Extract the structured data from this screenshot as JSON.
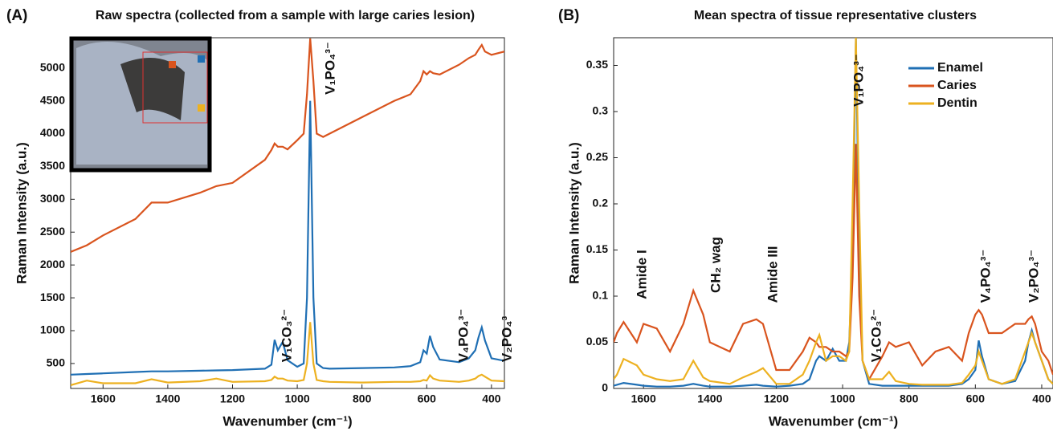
{
  "chart_data": [
    {
      "type": "line",
      "panel_label": "(A)",
      "title": "Raw spectra (collected from a sample with large caries lesion)",
      "x_label": "Wavenumber (cm⁻¹)",
      "y_label": "Raman Intensity (a.u.)",
      "xlim": [
        1700,
        360
      ],
      "ylim": [
        120,
        5460
      ],
      "xticks": [
        1600,
        1400,
        1200,
        1000,
        800,
        600,
        400
      ],
      "yticks": [
        500,
        1000,
        1500,
        2000,
        2500,
        3000,
        3500,
        4000,
        4500,
        5000
      ],
      "x": [
        1700,
        1650,
        1600,
        1500,
        1450,
        1400,
        1300,
        1250,
        1200,
        1100,
        1080,
        1070,
        1060,
        1045,
        1030,
        1000,
        980,
        970,
        960,
        950,
        940,
        920,
        900,
        800,
        700,
        650,
        620,
        610,
        600,
        590,
        580,
        560,
        500,
        470,
        450,
        440,
        430,
        420,
        400,
        360
      ],
      "series": [
        {
          "color": "#1f6fb4",
          "values": [
            330,
            340,
            350,
            370,
            380,
            380,
            390,
            395,
            400,
            420,
            480,
            860,
            700,
            830,
            550,
            450,
            500,
            1500,
            4500,
            1500,
            500,
            430,
            420,
            430,
            440,
            460,
            520,
            700,
            650,
            920,
            750,
            560,
            520,
            580,
            700,
            900,
            1050,
            850,
            580,
            540
          ]
        },
        {
          "color": "#d9541e",
          "values": [
            2200,
            2300,
            2450,
            2700,
            2950,
            2950,
            3100,
            3200,
            3250,
            3600,
            3750,
            3850,
            3800,
            3800,
            3760,
            3900,
            4000,
            4600,
            5450,
            4800,
            4000,
            3950,
            4000,
            4250,
            4500,
            4600,
            4800,
            4950,
            4900,
            4950,
            4920,
            4900,
            5050,
            5150,
            5200,
            5280,
            5350,
            5250,
            5200,
            5250
          ]
        },
        {
          "color": "#edb120",
          "values": [
            170,
            240,
            200,
            200,
            260,
            210,
            230,
            270,
            220,
            230,
            250,
            300,
            270,
            270,
            240,
            230,
            250,
            500,
            1130,
            500,
            250,
            230,
            220,
            210,
            220,
            220,
            230,
            250,
            240,
            320,
            270,
            240,
            220,
            240,
            270,
            310,
            330,
            300,
            240,
            230
          ]
        }
      ],
      "annotations": [
        "V₁CO₃²⁻",
        "V₁PO₄³⁻",
        "V₄PO₄³⁻",
        "V₂PO₄³⁻"
      ]
    },
    {
      "type": "line",
      "panel_label": "(B)",
      "title": "Mean spectra of tissue representative clusters",
      "x_label": "Wavenumber (cm⁻¹)",
      "y_label": "Raman Intensity (a.u.)",
      "xlim": [
        1690,
        366
      ],
      "ylim": [
        0,
        0.38
      ],
      "xticks": [
        1600,
        1400,
        1200,
        1000,
        800,
        600,
        400
      ],
      "yticks": [
        0,
        0.05,
        0.1,
        0.15,
        0.2,
        0.25,
        0.3,
        0.35
      ],
      "legend": "upper right",
      "x": [
        1690,
        1680,
        1660,
        1620,
        1600,
        1560,
        1520,
        1480,
        1450,
        1420,
        1400,
        1340,
        1300,
        1260,
        1240,
        1200,
        1160,
        1120,
        1100,
        1080,
        1070,
        1050,
        1030,
        1010,
        990,
        980,
        970,
        960,
        950,
        940,
        920,
        880,
        860,
        840,
        800,
        760,
        720,
        680,
        640,
        620,
        600,
        590,
        580,
        560,
        520,
        480,
        450,
        440,
        430,
        420,
        400,
        380,
        366
      ],
      "series": [
        {
          "name": "Enamel",
          "color": "#1f6fb4",
          "values": [
            0.003,
            0.004,
            0.006,
            0.004,
            0.003,
            0.002,
            0.002,
            0.003,
            0.005,
            0.003,
            0.002,
            0.002,
            0.003,
            0.004,
            0.003,
            0.002,
            0.003,
            0.005,
            0.01,
            0.03,
            0.035,
            0.03,
            0.043,
            0.03,
            0.03,
            0.05,
            0.15,
            0.38,
            0.15,
            0.03,
            0.005,
            0.003,
            0.003,
            0.003,
            0.003,
            0.003,
            0.003,
            0.003,
            0.005,
            0.01,
            0.02,
            0.052,
            0.035,
            0.01,
            0.005,
            0.008,
            0.03,
            0.05,
            0.063,
            0.05,
            0.03,
            0.01,
            0.005
          ]
        },
        {
          "name": "Caries",
          "color": "#d9541e",
          "values": [
            0.05,
            0.06,
            0.072,
            0.05,
            0.07,
            0.065,
            0.04,
            0.07,
            0.106,
            0.08,
            0.05,
            0.04,
            0.07,
            0.075,
            0.07,
            0.02,
            0.02,
            0.04,
            0.055,
            0.05,
            0.045,
            0.045,
            0.04,
            0.04,
            0.035,
            0.04,
            0.12,
            0.265,
            0.1,
            0.03,
            0.01,
            0.035,
            0.05,
            0.045,
            0.05,
            0.025,
            0.04,
            0.045,
            0.03,
            0.06,
            0.08,
            0.085,
            0.08,
            0.06,
            0.06,
            0.07,
            0.07,
            0.075,
            0.078,
            0.07,
            0.04,
            0.03,
            0.015
          ]
        },
        {
          "name": "Dentin",
          "color": "#edb120",
          "values": [
            0.01,
            0.015,
            0.032,
            0.025,
            0.015,
            0.01,
            0.008,
            0.01,
            0.03,
            0.012,
            0.008,
            0.005,
            0.012,
            0.018,
            0.022,
            0.005,
            0.005,
            0.015,
            0.03,
            0.05,
            0.058,
            0.03,
            0.035,
            0.035,
            0.03,
            0.04,
            0.2,
            0.38,
            0.2,
            0.03,
            0.01,
            0.01,
            0.018,
            0.008,
            0.005,
            0.004,
            0.004,
            0.004,
            0.006,
            0.015,
            0.025,
            0.04,
            0.03,
            0.01,
            0.005,
            0.01,
            0.04,
            0.05,
            0.06,
            0.05,
            0.03,
            0.01,
            0.005
          ]
        }
      ],
      "annotations": [
        "Amide I",
        "CH₂ wag",
        "Amide III",
        "V₁CO₃²⁻",
        "V₁PO₄³⁻",
        "V₄PO₄³⁻",
        "V₂PO₄³⁻"
      ]
    }
  ]
}
